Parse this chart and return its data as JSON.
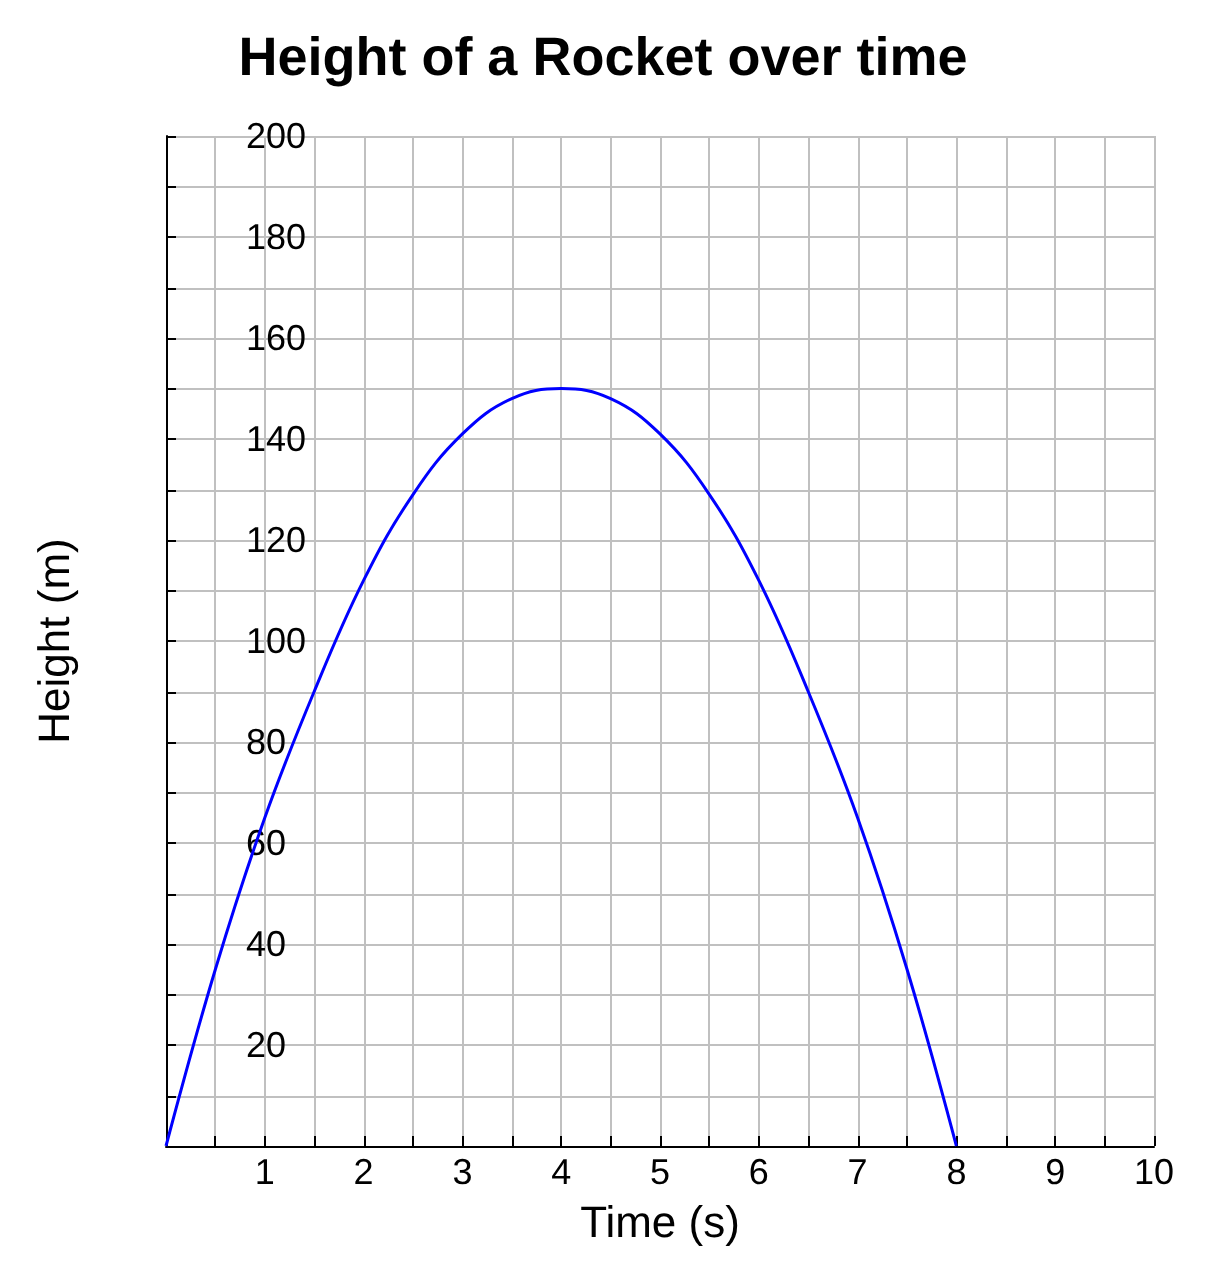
{
  "chart_data": {
    "type": "line",
    "title": "Height of a Rocket over time",
    "xlabel": "Time (s)",
    "ylabel": "Height (m)",
    "x": [
      0,
      0.5,
      1,
      1.5,
      2,
      2.5,
      3,
      3.5,
      4,
      4.5,
      5,
      5.5,
      6,
      6.5,
      7,
      7.5,
      8
    ],
    "series": [
      {
        "color": "#0000ff",
        "values": [
          0,
          35,
          65,
          90,
          112,
          129,
          141,
          148,
          150,
          148,
          141,
          129,
          112,
          90,
          65,
          35,
          0
        ]
      }
    ],
    "xlim": [
      0,
      10
    ],
    "xticks": [
      {
        "value": 0,
        "label": null
      },
      {
        "value": 0.5,
        "label": null
      },
      1,
      {
        "value": 1.5,
        "label": null
      },
      2,
      {
        "value": 2.5,
        "label": null
      },
      3,
      {
        "value": 3.5,
        "label": null
      },
      4,
      {
        "value": 4.5,
        "label": null
      },
      5,
      {
        "value": 5.5,
        "label": null
      },
      6,
      {
        "value": 6.5,
        "label": null
      },
      7,
      {
        "value": 7.5,
        "label": null
      },
      8,
      {
        "value": 8.5,
        "label": null
      },
      9,
      {
        "value": 9.5,
        "label": null
      },
      10
    ],
    "ylim": [
      0,
      200
    ],
    "yticks": [
      {
        "value": 0,
        "label": null
      },
      {
        "value": 10,
        "label": null
      },
      20,
      {
        "value": 30,
        "label": null
      },
      40,
      {
        "value": 50,
        "label": null
      },
      60,
      {
        "value": 70,
        "label": null
      },
      80,
      {
        "value": 90,
        "label": null
      },
      100,
      {
        "value": 110,
        "label": null
      },
      120,
      {
        "value": 130,
        "label": null
      },
      140,
      {
        "value": 150,
        "label": null
      },
      160,
      {
        "value": 170,
        "label": null
      },
      180,
      {
        "value": 190,
        "label": null
      },
      200
    ],
    "grid": true,
    "marker": "none",
    "line_style": "solid"
  }
}
